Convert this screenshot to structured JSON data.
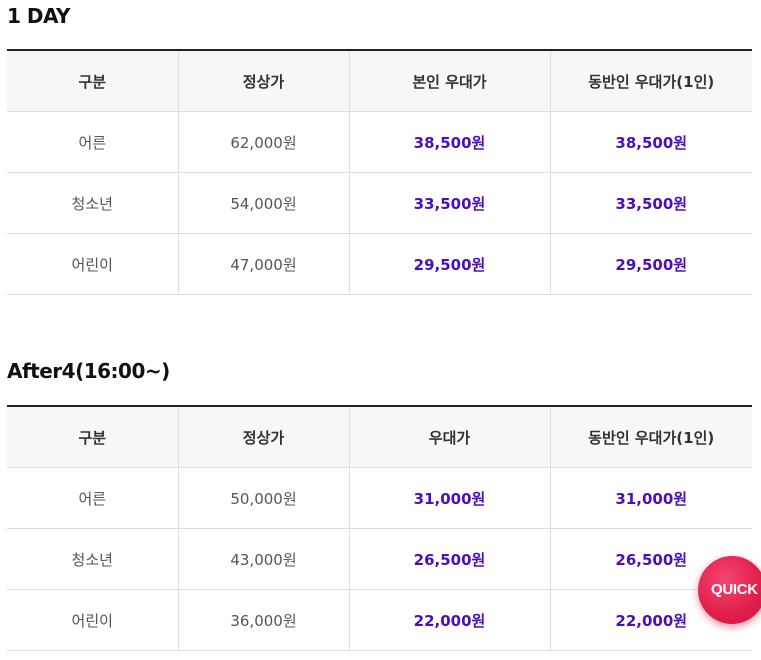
{
  "sections": [
    {
      "title": "1 DAY",
      "headers": [
        "구분",
        "정상가",
        "본인 우대가",
        "동반인 우대가(1인)"
      ],
      "rows": [
        {
          "category": "어른",
          "regular": "62,000원",
          "discount": "38,500원",
          "companion": "38,500원"
        },
        {
          "category": "청소년",
          "regular": "54,000원",
          "discount": "33,500원",
          "companion": "33,500원"
        },
        {
          "category": "어린이",
          "regular": "47,000원",
          "discount": "29,500원",
          "companion": "29,500원"
        }
      ]
    },
    {
      "title": "After4(16:00~)",
      "headers": [
        "구분",
        "정상가",
        "우대가",
        "동반인 우대가(1인)"
      ],
      "rows": [
        {
          "category": "어른",
          "regular": "50,000원",
          "discount": "31,000원",
          "companion": "31,000원"
        },
        {
          "category": "청소년",
          "regular": "43,000원",
          "discount": "26,500원",
          "companion": "26,500원"
        },
        {
          "category": "어린이",
          "regular": "36,000원",
          "discount": "22,000원",
          "companion": "22,000원"
        }
      ]
    }
  ],
  "quick_button": {
    "label": "QUICK"
  },
  "colors": {
    "discount_text": "#4a0ec0",
    "header_bg": "#f7f7f7",
    "quick_button": "#e21d4b"
  }
}
